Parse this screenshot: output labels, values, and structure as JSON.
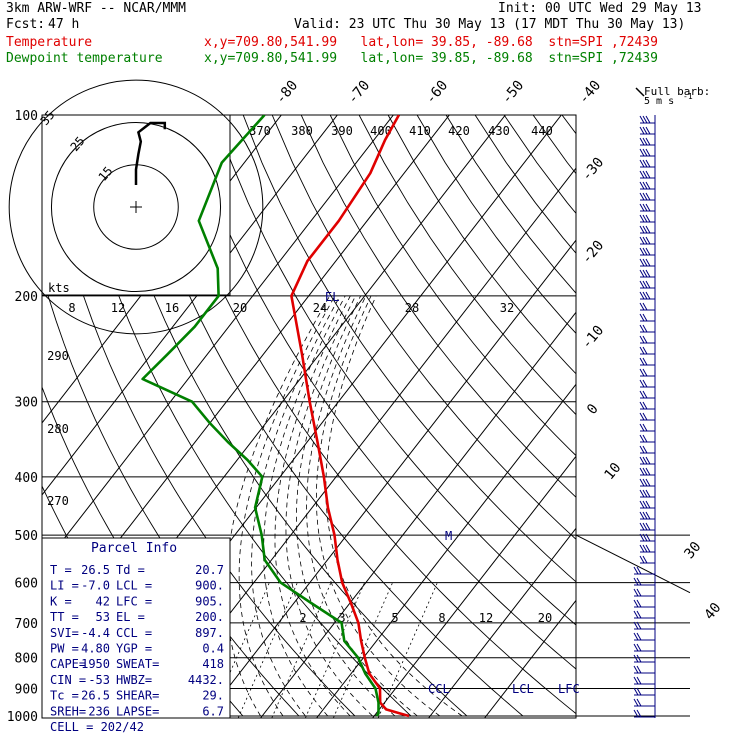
{
  "header": {
    "model": "3km ARW-WRF -- NCAR/MMM",
    "init": "Init: 00 UTC Wed 29 May 13",
    "fcst_label": "Fcst:",
    "fcst_value": "47 h",
    "valid": "Valid: 23 UTC Thu 30 May 13 (17 MDT Thu 30 May 13)",
    "temp_label": "Temperature",
    "dew_label": "Dewpoint temperature",
    "location": "x,y=709.80,541.99   lat,lon= 39.85, -89.68  stn=SPI ,72439"
  },
  "colors": {
    "temperature": "#e00000",
    "dewpoint": "#008000",
    "index": "#000080",
    "grid": "#000000"
  },
  "barb_legend": {
    "line1": "Full barb:",
    "line2": "5 m s",
    "exp": "-1"
  },
  "parcel": {
    "title": "Parcel Info",
    "rows": [
      [
        "T  =",
        "26.5",
        "Td =",
        "20.7"
      ],
      [
        "LI =",
        "-7.0",
        "LCL =",
        "900."
      ],
      [
        "K  =",
        "42",
        "LFC =",
        "905."
      ],
      [
        "TT =",
        "53",
        "EL  =",
        "200."
      ],
      [
        "SVI=",
        "-4.4",
        "CCL =",
        "897."
      ],
      [
        "PW =",
        "4.80",
        "YGP =",
        "0.4"
      ],
      [
        "CAPE=",
        "1950",
        "SWEAT=",
        "418"
      ],
      [
        "CIN =",
        "-53",
        "HWBZ=",
        "4432."
      ],
      [
        "Tc =",
        "26.5",
        "SHEAR=",
        "29."
      ],
      [
        "SREH=",
        "236",
        "LAPSE=",
        "6.7"
      ]
    ],
    "cell": "CELL = 202/42"
  },
  "markers": {
    "el": "EL",
    "m": "M",
    "ccl": "CCL",
    "lcl": "LCL",
    "lfc": "LFC"
  },
  "chart_data": {
    "type": "line",
    "pressure_levels": [
      100,
      200,
      300,
      400,
      500,
      600,
      700,
      800,
      900,
      1000
    ],
    "isotherms": [
      -80,
      -70,
      -60,
      -50,
      -40,
      -30,
      -20,
      -10,
      0,
      10,
      20,
      30,
      40
    ],
    "theta_e_labels": [
      370,
      380,
      390,
      400,
      410,
      420,
      430,
      440,
      290,
      280,
      270
    ],
    "mixing_ratio_labels": [
      2,
      3,
      5,
      8,
      12,
      20
    ],
    "hodograph": {
      "ring_labels": [
        "15",
        "25"
      ],
      "speed_labels": [
        "8",
        "12",
        "16",
        "20",
        "24",
        "28",
        "32"
      ],
      "unit": "kts",
      "trace": [
        [
          0,
          0
        ],
        [
          0,
          10
        ],
        [
          1,
          20
        ],
        [
          2,
          28
        ],
        [
          1,
          34
        ],
        [
          6,
          40
        ],
        [
          12,
          40
        ],
        [
          12,
          36
        ]
      ]
    },
    "series": [
      {
        "name": "Temperature",
        "points": [
          [
            1000,
            26.5
          ],
          [
            990,
            24.5
          ],
          [
            975,
            21.5
          ],
          [
            950,
            19.5
          ],
          [
            925,
            18.5
          ],
          [
            900,
            17.5
          ],
          [
            850,
            13.5
          ],
          [
            800,
            10.5
          ],
          [
            750,
            7.5
          ],
          [
            700,
            4.5
          ],
          [
            650,
            0.5
          ],
          [
            600,
            -4
          ],
          [
            550,
            -8
          ],
          [
            500,
            -12
          ],
          [
            450,
            -17
          ],
          [
            400,
            -22
          ],
          [
            350,
            -28
          ],
          [
            300,
            -35
          ],
          [
            250,
            -43
          ],
          [
            200,
            -53
          ],
          [
            175,
            -55
          ],
          [
            150,
            -55
          ],
          [
            125,
            -56
          ],
          [
            110,
            -58
          ],
          [
            100,
            -59
          ]
        ]
      },
      {
        "name": "Dewpoint temperature",
        "points": [
          [
            1000,
            20.7
          ],
          [
            990,
            20.7
          ],
          [
            950,
            19.2
          ],
          [
            900,
            16.7
          ],
          [
            850,
            12.8
          ],
          [
            800,
            9.3
          ],
          [
            750,
            4.5
          ],
          [
            700,
            1.5
          ],
          [
            650,
            -6.5
          ],
          [
            600,
            -15
          ],
          [
            550,
            -21
          ],
          [
            500,
            -25
          ],
          [
            450,
            -30
          ],
          [
            400,
            -33
          ],
          [
            375,
            -38
          ],
          [
            350,
            -44
          ],
          [
            325,
            -50
          ],
          [
            300,
            -56
          ],
          [
            275,
            -68
          ],
          [
            250,
            -67
          ],
          [
            225,
            -66
          ],
          [
            200,
            -66
          ],
          [
            180,
            -70
          ],
          [
            150,
            -80
          ],
          [
            120,
            -84
          ],
          [
            100,
            -83
          ]
        ]
      }
    ]
  }
}
